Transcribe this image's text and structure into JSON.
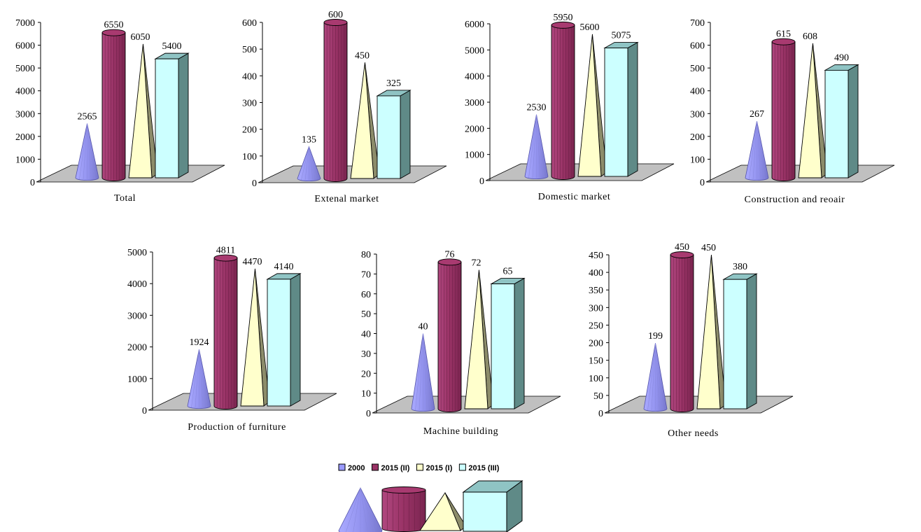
{
  "legend": {
    "series": [
      "2000",
      "2015 (II)",
      "2015 (I)",
      "2015 (III)"
    ]
  },
  "colors": {
    "2000": "#9999ff",
    "2015 (II)": "#993366",
    "2015 (I)": "#ffffcc",
    "2015 (III)": "#ccffff",
    "floor": "#c0c0c0"
  },
  "shapes": {
    "2000": "cone",
    "2015 (II)": "cylinder",
    "2015 (I)": "pyramid",
    "2015 (III)": "box"
  },
  "chart_data": [
    {
      "type": "bar",
      "title": "Total",
      "ylim": [
        0,
        7000
      ],
      "ticks": [
        0,
        1000,
        2000,
        3000,
        4000,
        5000,
        6000,
        7000
      ],
      "series": [
        {
          "name": "2000",
          "value": 2565
        },
        {
          "name": "2015 (II)",
          "value": 6550
        },
        {
          "name": "2015 (I)",
          "value": 6050
        },
        {
          "name": "2015 (III)",
          "value": 5400
        }
      ]
    },
    {
      "type": "bar",
      "title": "Extenal market",
      "ylim": [
        0,
        600
      ],
      "ticks": [
        0,
        100,
        200,
        300,
        400,
        500,
        600
      ],
      "series": [
        {
          "name": "2000",
          "value": 135
        },
        {
          "name": "2015 (II)",
          "value": 600
        },
        {
          "name": "2015 (I)",
          "value": 450
        },
        {
          "name": "2015 (III)",
          "value": 325
        }
      ]
    },
    {
      "type": "bar",
      "title": "Domestic market",
      "ylim": [
        0,
        6000
      ],
      "ticks": [
        0,
        1000,
        2000,
        3000,
        4000,
        5000,
        6000
      ],
      "series": [
        {
          "name": "2000",
          "value": 2530
        },
        {
          "name": "2015 (II)",
          "value": 5950
        },
        {
          "name": "2015 (I)",
          "value": 5600
        },
        {
          "name": "2015 (III)",
          "value": 5075
        }
      ]
    },
    {
      "type": "bar",
      "title": "Construction and reoair",
      "ylim": [
        0,
        700
      ],
      "ticks": [
        0,
        100,
        200,
        300,
        400,
        500,
        600,
        700
      ],
      "series": [
        {
          "name": "2000",
          "value": 267
        },
        {
          "name": "2015 (II)",
          "value": 615
        },
        {
          "name": "2015 (I)",
          "value": 608
        },
        {
          "name": "2015 (III)",
          "value": 490
        }
      ]
    },
    {
      "type": "bar",
      "title": "Production of furniture",
      "ylim": [
        0,
        5000
      ],
      "ticks": [
        0,
        1000,
        2000,
        3000,
        4000,
        5000
      ],
      "series": [
        {
          "name": "2000",
          "value": 1924
        },
        {
          "name": "2015 (II)",
          "value": 4811
        },
        {
          "name": "2015 (I)",
          "value": 4470
        },
        {
          "name": "2015 (III)",
          "value": 4140
        }
      ]
    },
    {
      "type": "bar",
      "title": "Machine building",
      "ylim": [
        0,
        80
      ],
      "ticks": [
        0,
        10,
        20,
        30,
        40,
        50,
        60,
        70,
        80
      ],
      "series": [
        {
          "name": "2000",
          "value": 40
        },
        {
          "name": "2015 (II)",
          "value": 76
        },
        {
          "name": "2015 (I)",
          "value": 72
        },
        {
          "name": "2015 (III)",
          "value": 65
        }
      ]
    },
    {
      "type": "bar",
      "title": "Other needs",
      "ylim": [
        0,
        450
      ],
      "ticks": [
        0,
        50,
        100,
        150,
        200,
        250,
        300,
        350,
        400,
        450
      ],
      "series": [
        {
          "name": "2000",
          "value": 199
        },
        {
          "name": "2015 (II)",
          "value": 450
        },
        {
          "name": "2015 (I)",
          "value": 450
        },
        {
          "name": "2015 (III)",
          "value": 380
        }
      ]
    }
  ]
}
